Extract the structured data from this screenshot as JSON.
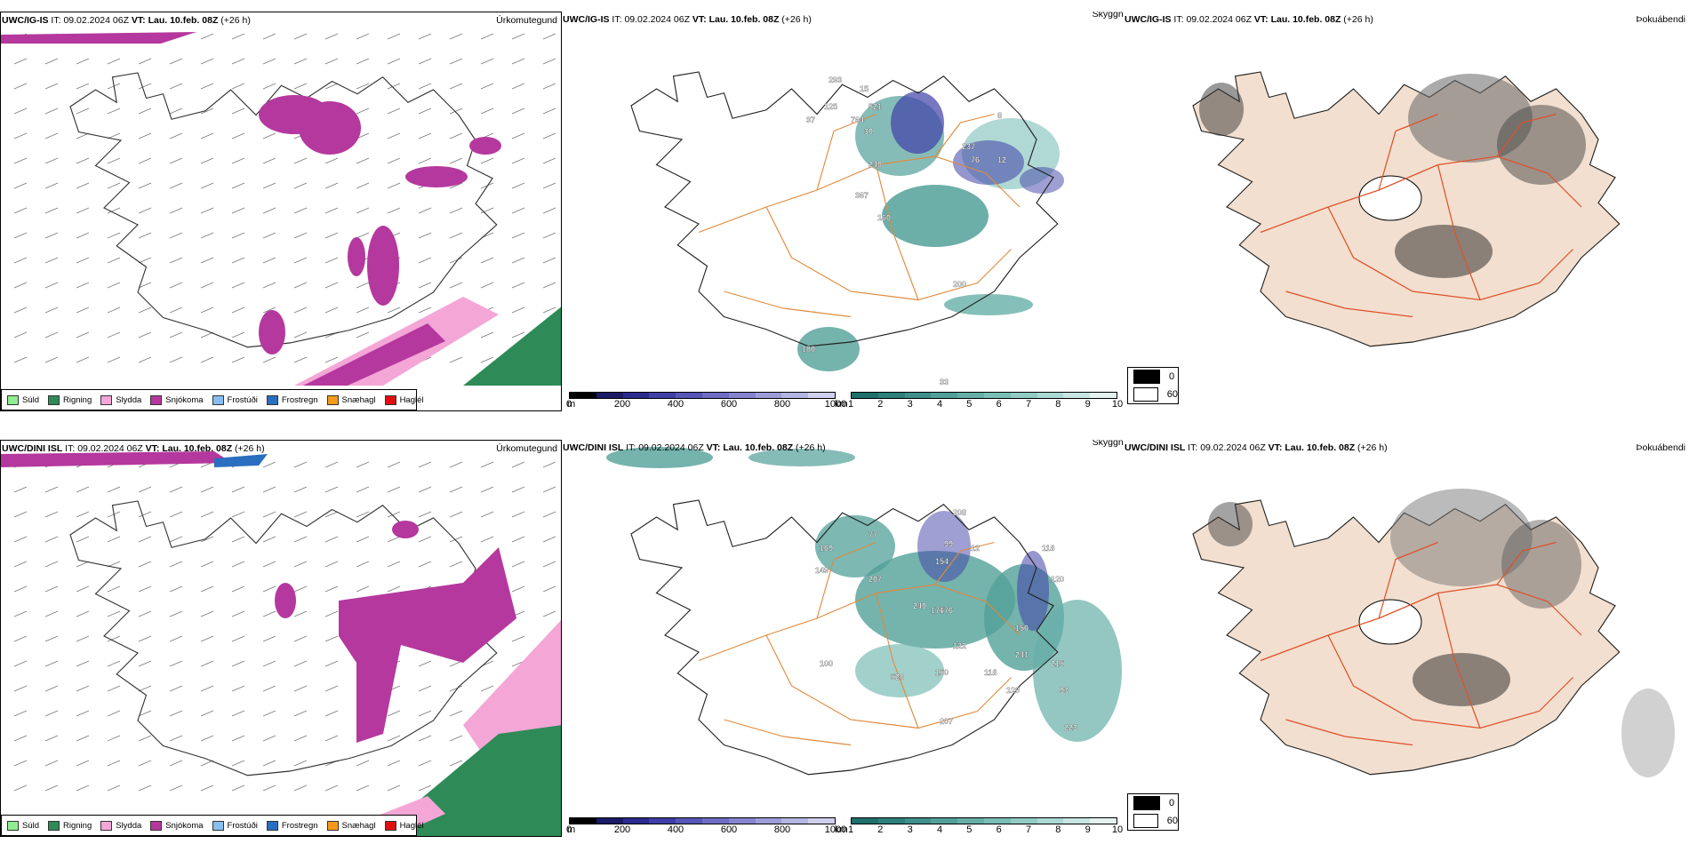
{
  "rows": [
    {
      "precip": {
        "model": "UWC/IG-IS",
        "it_label": "IT:",
        "it_value": "09.02.2024 06Z",
        "vt_label": "VT:",
        "vt_value": "Lau. 10.feb. 08Z",
        "lead": "(+26 h)",
        "type": "Úrkomutegund"
      },
      "cloud": {
        "model": "UWC/IG-IS",
        "it_label": "IT:",
        "it_value": "09.02.2024 06Z",
        "vt_label": "VT:",
        "vt_value": "Lau. 10.feb. 08Z",
        "lead": "(+26 h)",
        "type": "Skyggni",
        "labels": [
          "293",
          "15",
          "125",
          "37",
          "521",
          "764",
          "30",
          "240",
          "237",
          "76",
          "12",
          "367",
          "160",
          "200",
          "180",
          "33",
          "8"
        ]
      },
      "fog": {
        "model": "UWC/IG-IS",
        "it_label": "IT:",
        "it_value": "09.02.2024 06Z",
        "vt_label": "VT:",
        "vt_value": "Lau. 10.feb. 08Z",
        "lead": "(+26 h)",
        "type": "Þokuábendi"
      }
    },
    {
      "precip": {
        "model": "UWC/DINI ISL",
        "it_label": "IT:",
        "it_value": "09.02.2024 06Z",
        "vt_label": "VT:",
        "vt_value": "Lau. 10.feb. 08Z",
        "lead": "(+26 h)",
        "type": "Úrkomutegund"
      },
      "cloud": {
        "model": "UWC/DINI ISL",
        "it_label": "IT:",
        "it_value": "09.02.2024 06Z",
        "vt_label": "VT:",
        "vt_value": "Lau. 10.feb. 08Z",
        "lead": "(+26 h)",
        "type": "Skyggni",
        "labels": [
          "208",
          "99",
          "12",
          "118",
          "120",
          "169",
          "77",
          "154",
          "207",
          "149",
          "240",
          "176",
          "176",
          "150",
          "122",
          "241",
          "215",
          "100",
          "528",
          "150",
          "118",
          "120",
          "93",
          "207",
          "223"
        ]
      },
      "fog": {
        "model": "UWC/DINI ISL",
        "it_label": "IT:",
        "it_value": "09.02.2024 06Z",
        "vt_label": "VT:",
        "vt_value": "Lau. 10.feb. 08Z",
        "lead": "(+26 h)",
        "type": "Þokuábendi"
      }
    }
  ],
  "precip_legend": [
    {
      "label": "Súld",
      "color": "#90ee90"
    },
    {
      "label": "Rigning",
      "color": "#2e8b57"
    },
    {
      "label": "Slydda",
      "color": "#f4a6d7"
    },
    {
      "label": "Snjókoma",
      "color": "#b5389e"
    },
    {
      "label": "Frostúði",
      "color": "#87bff0"
    },
    {
      "label": "Frostregn",
      "color": "#2a6fbf"
    },
    {
      "label": "Snæhagl",
      "color": "#f39a1a"
    },
    {
      "label": "Haglél",
      "color": "#e01010"
    }
  ],
  "ceiling_bar": {
    "unit": "m",
    "ticks": [
      "0",
      "200",
      "400",
      "600",
      "800",
      "1000"
    ],
    "colors": [
      "#000000",
      "#1a1a66",
      "#2b2b8f",
      "#3f3fa8",
      "#5656b8",
      "#6d6dc4",
      "#8585cf",
      "#9d9dd9",
      "#b5b5e3",
      "#d0d0ee"
    ]
  },
  "visibility_bar": {
    "unit": "km",
    "ticks": [
      "1",
      "2",
      "3",
      "4",
      "5",
      "6",
      "7",
      "8",
      "9",
      "10"
    ],
    "colors": [
      "#1f6f6a",
      "#2e807a",
      "#3f908a",
      "#52a099",
      "#66afa8",
      "#7bbeb7",
      "#92ccc5",
      "#abd9d3",
      "#c6e6e1",
      "#e4f3f0"
    ]
  },
  "fog_legend": [
    {
      "label": "0",
      "color": "#000000"
    },
    {
      "label": "60",
      "color": "#ffffff"
    }
  ]
}
